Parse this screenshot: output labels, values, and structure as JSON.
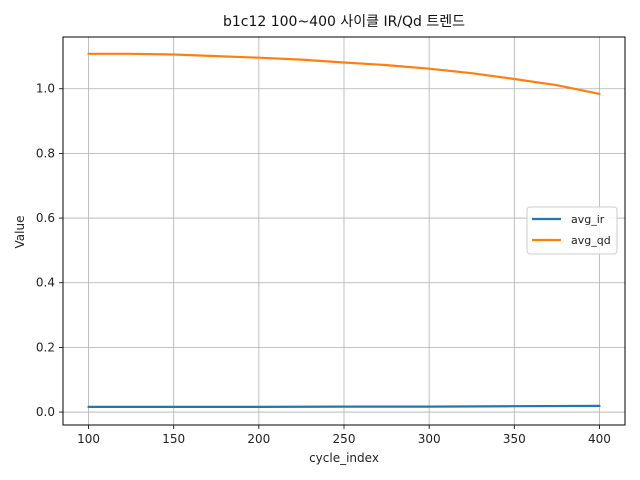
{
  "chart_data": {
    "type": "line",
    "title": "b1c12 100~400 사이클 IR/Qd 트렌드",
    "xlabel": "cycle_index",
    "ylabel": "Value",
    "xlim": [
      85,
      415
    ],
    "ylim": [
      -0.04,
      1.16
    ],
    "xticks": [
      100,
      150,
      200,
      250,
      300,
      350,
      400
    ],
    "yticks": [
      0.0,
      0.2,
      0.4,
      0.6,
      0.8,
      1.0
    ],
    "grid": true,
    "legend_position": "center-right",
    "series": [
      {
        "name": "avg_ir",
        "color": "#1f77b4",
        "x": [
          100,
          150,
          200,
          250,
          300,
          350,
          400
        ],
        "y": [
          0.016,
          0.016,
          0.016,
          0.017,
          0.017,
          0.018,
          0.019
        ]
      },
      {
        "name": "avg_qd",
        "color": "#ff7f0e",
        "x": [
          100,
          125,
          150,
          175,
          200,
          225,
          250,
          275,
          300,
          325,
          350,
          375,
          400
        ],
        "y": [
          1.108,
          1.108,
          1.106,
          1.101,
          1.096,
          1.09,
          1.081,
          1.073,
          1.062,
          1.048,
          1.03,
          1.011,
          0.984
        ]
      }
    ]
  }
}
